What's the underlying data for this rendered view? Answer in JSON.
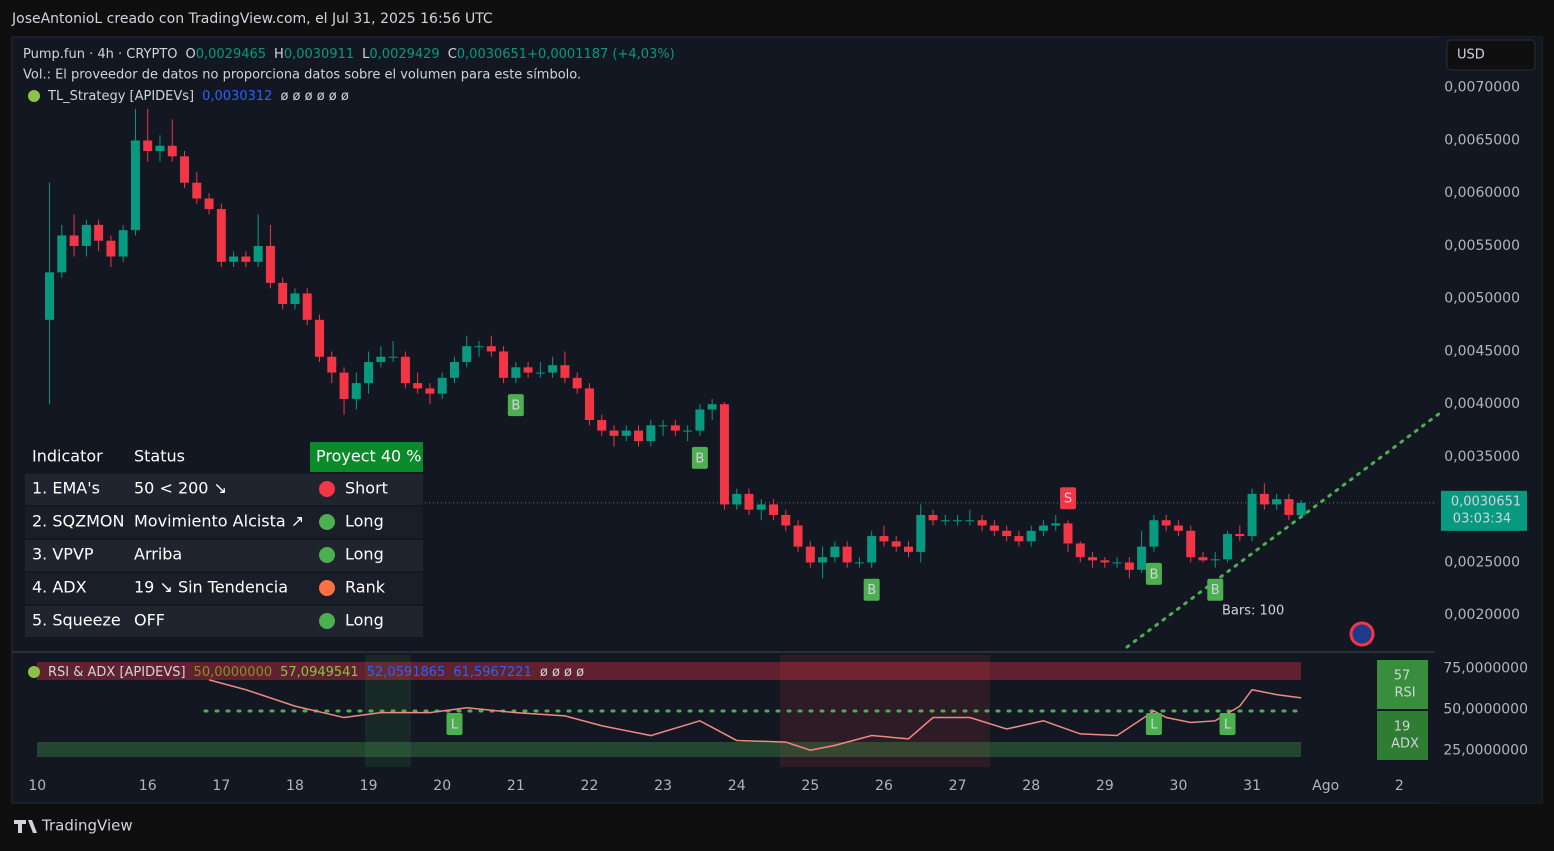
{
  "header": {
    "credit": "JoseAntonioL creado con TradingView.com, el Jul 31, 2025 16:56 UTC",
    "currency": "USD",
    "brand": "TradingView"
  },
  "chart_data": [
    {
      "type": "candlestick",
      "symbol": "Pump.fun · 4h · CRYPTO",
      "legend": [
        "O",
        "0,0029465",
        "H",
        "0,0030911",
        "L",
        "0,0029429",
        "C",
        "0,0030651",
        "+0,0001187 (+4,03%)"
      ],
      "subtitle": "Vol.: El proveedor de datos no proporciona datos sobre el volumen para este símbolo.",
      "indicator": "TL_Strategy [APIDEVs]",
      "indicator_value": "0,0030312",
      "indicator_na": "ø ø ø ø ø ø",
      "up_color": "#089981",
      "down_color": "#f23645",
      "open": [
        0.0048,
        0.00525,
        0.0056,
        0.0055,
        0.0057,
        0.00555,
        0.0054,
        0.00565,
        0.0065,
        0.0064,
        0.00645,
        0.00635,
        0.0061,
        0.00595,
        0.00585,
        0.00535,
        0.0054,
        0.00535,
        0.0055,
        0.00515,
        0.00495,
        0.00505,
        0.0048,
        0.00445,
        0.0043,
        0.00405,
        0.0042,
        0.0044,
        0.00445,
        0.00445,
        0.0042,
        0.00415,
        0.0041,
        0.00425,
        0.0044,
        0.00455,
        0.00455,
        0.0045,
        0.00425,
        0.00435,
        0.0043,
        0.0043,
        0.00437,
        0.00425,
        0.00415,
        0.00385,
        0.00375,
        0.0037,
        0.00375,
        0.00365,
        0.0038,
        0.0038,
        0.00375,
        0.00375,
        0.00395,
        0.004,
        0.00305,
        0.00315,
        0.003,
        0.00305,
        0.00295,
        0.00285,
        0.00265,
        0.0025,
        0.00255,
        0.00265,
        0.0025,
        0.0025,
        0.00275,
        0.0027,
        0.00265,
        0.0026,
        0.00295,
        0.0029,
        0.0029,
        0.0029,
        0.0029,
        0.00285,
        0.0028,
        0.00275,
        0.0027,
        0.0028,
        0.00285,
        0.00287,
        0.00268,
        0.00255,
        0.00252,
        0.0025,
        0.0025,
        0.00243,
        0.00265,
        0.0029,
        0.00285,
        0.0028,
        0.00255,
        0.00252,
        0.00253,
        0.00277,
        0.00275,
        0.00315,
        0.00305,
        0.0031,
        0.0029465
      ],
      "high": [
        0.0061,
        0.0057,
        0.0058,
        0.00575,
        0.00575,
        0.0056,
        0.0057,
        0.0068,
        0.0068,
        0.00655,
        0.0067,
        0.0064,
        0.0062,
        0.006,
        0.0059,
        0.00545,
        0.00545,
        0.0058,
        0.0057,
        0.0052,
        0.0051,
        0.0051,
        0.00485,
        0.0045,
        0.00435,
        0.0043,
        0.0045,
        0.00455,
        0.0046,
        0.0045,
        0.0043,
        0.0042,
        0.0043,
        0.00445,
        0.00465,
        0.0046,
        0.00465,
        0.00455,
        0.0044,
        0.0044,
        0.0044,
        0.00445,
        0.0045,
        0.0043,
        0.0042,
        0.0039,
        0.0038,
        0.0038,
        0.0038,
        0.00385,
        0.00385,
        0.00385,
        0.0038,
        0.004,
        0.00405,
        0.00402,
        0.0032,
        0.0032,
        0.0031,
        0.0031,
        0.003,
        0.0029,
        0.0027,
        0.00265,
        0.0027,
        0.0027,
        0.00255,
        0.0028,
        0.00285,
        0.00275,
        0.0027,
        0.00305,
        0.003,
        0.00295,
        0.00295,
        0.003,
        0.00295,
        0.0029,
        0.00285,
        0.0028,
        0.00285,
        0.0029,
        0.00295,
        0.0029,
        0.0027,
        0.0026,
        0.00255,
        0.00255,
        0.00255,
        0.0028,
        0.00295,
        0.00295,
        0.0029,
        0.00285,
        0.0026,
        0.0026,
        0.0028,
        0.00285,
        0.0032,
        0.00325,
        0.00315,
        0.00315,
        0.0030911
      ],
      "low": [
        0.004,
        0.0052,
        0.0054,
        0.0054,
        0.00545,
        0.0053,
        0.00535,
        0.0056,
        0.0063,
        0.0063,
        0.0063,
        0.00605,
        0.0059,
        0.0058,
        0.0053,
        0.0053,
        0.0053,
        0.0053,
        0.0051,
        0.0049,
        0.0049,
        0.00475,
        0.0044,
        0.0042,
        0.0039,
        0.00395,
        0.0041,
        0.00435,
        0.0044,
        0.00415,
        0.0041,
        0.004,
        0.00405,
        0.0042,
        0.00435,
        0.00445,
        0.00445,
        0.0042,
        0.0042,
        0.00425,
        0.00425,
        0.00425,
        0.0042,
        0.0041,
        0.0038,
        0.0037,
        0.0036,
        0.00365,
        0.0036,
        0.0036,
        0.0037,
        0.0037,
        0.00365,
        0.0037,
        0.00385,
        0.003,
        0.003,
        0.00295,
        0.0029,
        0.0029,
        0.0028,
        0.0026,
        0.00245,
        0.00235,
        0.0025,
        0.00245,
        0.00245,
        0.00245,
        0.00265,
        0.0026,
        0.00255,
        0.0025,
        0.00285,
        0.00285,
        0.00285,
        0.00285,
        0.0028,
        0.00275,
        0.0027,
        0.00265,
        0.00265,
        0.00275,
        0.0028,
        0.0026,
        0.0025,
        0.00245,
        0.00245,
        0.00245,
        0.00235,
        0.0024,
        0.0026,
        0.0028,
        0.00275,
        0.0025,
        0.0025,
        0.00245,
        0.0025,
        0.0027,
        0.0027,
        0.003,
        0.003,
        0.0029,
        0.0029429
      ],
      "close": [
        0.00525,
        0.0056,
        0.0055,
        0.0057,
        0.00555,
        0.0054,
        0.00565,
        0.0065,
        0.0064,
        0.00645,
        0.00635,
        0.0061,
        0.00595,
        0.00585,
        0.00535,
        0.0054,
        0.00535,
        0.0055,
        0.00515,
        0.00495,
        0.00505,
        0.0048,
        0.00445,
        0.0043,
        0.00405,
        0.0042,
        0.0044,
        0.00445,
        0.00445,
        0.0042,
        0.00415,
        0.0041,
        0.00425,
        0.0044,
        0.00455,
        0.00455,
        0.0045,
        0.00425,
        0.00435,
        0.0043,
        0.0043,
        0.00437,
        0.00425,
        0.00415,
        0.00385,
        0.00375,
        0.0037,
        0.00375,
        0.00365,
        0.0038,
        0.0038,
        0.00375,
        0.00375,
        0.00395,
        0.004,
        0.00305,
        0.00315,
        0.003,
        0.00305,
        0.00295,
        0.00285,
        0.00265,
        0.0025,
        0.00255,
        0.00265,
        0.0025,
        0.0025,
        0.00275,
        0.0027,
        0.00265,
        0.0026,
        0.00295,
        0.0029,
        0.0029,
        0.0029,
        0.0029,
        0.00285,
        0.0028,
        0.00275,
        0.0027,
        0.0028,
        0.00285,
        0.00287,
        0.00268,
        0.00255,
        0.00252,
        0.0025,
        0.0025,
        0.00243,
        0.00265,
        0.0029,
        0.00285,
        0.0028,
        0.00255,
        0.00252,
        0.00253,
        0.00277,
        0.00275,
        0.00315,
        0.00305,
        0.0031,
        0.00295,
        0.0030651
      ],
      "xlim": [
        -2,
        112.5
      ],
      "xticks": [
        {
          "value": -1,
          "label": "10"
        },
        {
          "value": 8,
          "label": "16"
        },
        {
          "value": 14,
          "label": "17"
        },
        {
          "value": 20,
          "label": "18"
        },
        {
          "value": 26,
          "label": "19"
        },
        {
          "value": 32,
          "label": "20"
        },
        {
          "value": 38,
          "label": "21"
        },
        {
          "value": 44,
          "label": "22"
        },
        {
          "value": 50,
          "label": "23"
        },
        {
          "value": 56,
          "label": "24"
        },
        {
          "value": 62,
          "label": "25"
        },
        {
          "value": 68,
          "label": "26"
        },
        {
          "value": 74,
          "label": "27"
        },
        {
          "value": 80,
          "label": "28"
        },
        {
          "value": 86,
          "label": "29"
        },
        {
          "value": 92,
          "label": "30"
        },
        {
          "value": 98,
          "label": "31"
        },
        {
          "value": 104,
          "label": "Ago"
        },
        {
          "value": 110,
          "label": "2"
        }
      ],
      "ylim": [
        0.00167,
        0.0075
      ],
      "yticks": [
        {
          "value": 0.002,
          "label": "0,0020000"
        },
        {
          "value": 0.0025,
          "label": "0,0025000"
        },
        {
          "value": 0.0035,
          "label": "0,0035000"
        },
        {
          "value": 0.004,
          "label": "0,0040000"
        },
        {
          "value": 0.0045,
          "label": "0,0045000"
        },
        {
          "value": 0.005,
          "label": "0,0050000"
        },
        {
          "value": 0.0055,
          "label": "0,0055000"
        },
        {
          "value": 0.006,
          "label": "0,0060000"
        },
        {
          "value": 0.0065,
          "label": "0,0065000"
        },
        {
          "value": 0.007,
          "label": "0,0070000"
        }
      ],
      "last_price": {
        "value": 0.0030651,
        "label": "0,0030651"
      },
      "countdown": "03:03:34",
      "signals": [
        {
          "text": "B",
          "index": 38
        },
        {
          "text": "B",
          "index": 53
        },
        {
          "text": "B",
          "index": 67
        },
        {
          "text": "S",
          "index": 83
        },
        {
          "text": "B",
          "index": 90
        },
        {
          "text": "B",
          "index": 95
        }
      ],
      "bars_label": "Bars: 100",
      "table": {
        "header": [
          "Indicator",
          "Status",
          "Proyect 40 %"
        ],
        "rows": [
          [
            "1. EMA's",
            "50 < 200 ↘",
            "Short"
          ],
          [
            "2. SQZMON",
            "Movimiento Alcista ↗",
            "Long"
          ],
          [
            "3. VPVP",
            "Arriba",
            "Long"
          ],
          [
            "4. ADX",
            "19 ↘ Sin Tendencia",
            "Rank"
          ],
          [
            "5. Squeeze",
            "OFF",
            "Long"
          ]
        ],
        "dot_colors": [
          "#f23645",
          "#4caf50",
          "#4caf50",
          "#ff7043",
          "#4caf50"
        ]
      }
    },
    {
      "type": "line",
      "title": "RSI & ADX [APIDEVS]",
      "legend_values": [
        "50,0000000",
        "57,0949541",
        "52,0591865",
        "61,5967221",
        "ø ø ø ø"
      ],
      "x": [
        13,
        16,
        20,
        24,
        27,
        31,
        34,
        38,
        42,
        45,
        49,
        53,
        56,
        60,
        62,
        64,
        67,
        70,
        72,
        75,
        78,
        81,
        84,
        87,
        90,
        91,
        93,
        95,
        97,
        98,
        100,
        102
      ],
      "values": [
        68,
        62,
        52,
        45,
        48,
        48,
        51,
        48,
        46,
        40,
        34,
        43,
        31,
        30,
        25,
        28,
        34,
        32,
        45,
        45,
        38,
        43,
        35,
        34,
        49,
        45,
        42,
        43,
        52,
        62,
        59,
        57
      ],
      "color": "#ef8a80",
      "xlim": [
        -2,
        112.5
      ],
      "ylim": [
        16,
        82
      ],
      "yticks": [
        {
          "value": 75,
          "label": "75,0000000"
        },
        {
          "value": 50,
          "label": "50,0000000"
        },
        {
          "value": 25,
          "label": "25,0000000"
        }
      ],
      "signals": [
        {
          "text": "L",
          "index": 33
        },
        {
          "text": "L",
          "index": 90
        },
        {
          "text": "L",
          "index": 96
        }
      ],
      "badges": [
        {
          "value": 57,
          "name": "RSI"
        },
        {
          "value": 19,
          "name": "ADX"
        }
      ]
    }
  ]
}
